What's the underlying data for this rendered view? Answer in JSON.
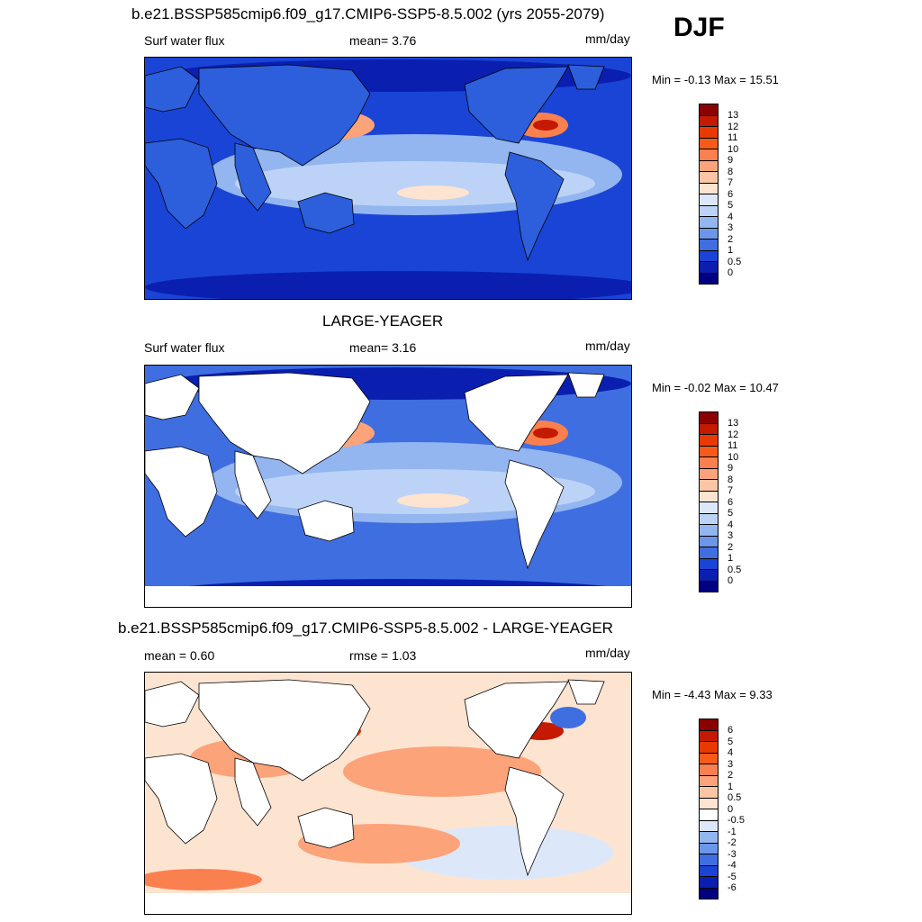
{
  "season": "DJF",
  "panels": [
    {
      "title": "b.e21.BSSP585cmip6.f09_g17.CMIP6-SSP5-8.5.002 (yrs 2055-2079)",
      "left_label": "Surf water flux",
      "stat": "mean=   3.76",
      "units": "mm/day",
      "minmax": "Min =  -0.13 Max =  15.51",
      "kind": "model",
      "colorbar": {
        "labels": [
          "13",
          "12",
          "11",
          "10",
          "9",
          "8",
          "7",
          "6",
          "5",
          "4",
          "3",
          "2",
          "1",
          "0.5",
          "0"
        ],
        "colors": [
          "#8b0000",
          "#c41a00",
          "#e83a00",
          "#f85a1a",
          "#fb8050",
          "#fca37a",
          "#fdc5a5",
          "#fde4d0",
          "#dce8fa",
          "#bcd3f7",
          "#93b6f0",
          "#6b96ea",
          "#3f6ee0",
          "#1a44d6",
          "#0a1fb0",
          "#000080"
        ]
      }
    },
    {
      "title": "LARGE-YEAGER",
      "left_label": "Surf water flux",
      "stat": "mean=   3.16",
      "units": "mm/day",
      "minmax": "Min =  -0.02 Max =  10.47",
      "kind": "obs",
      "colorbar": {
        "labels": [
          "13",
          "12",
          "11",
          "10",
          "9",
          "8",
          "7",
          "6",
          "5",
          "4",
          "3",
          "2",
          "1",
          "0.5",
          "0"
        ],
        "colors": [
          "#8b0000",
          "#c41a00",
          "#e83a00",
          "#f85a1a",
          "#fb8050",
          "#fca37a",
          "#fdc5a5",
          "#fde4d0",
          "#dce8fa",
          "#bcd3f7",
          "#93b6f0",
          "#6b96ea",
          "#3f6ee0",
          "#1a44d6",
          "#0a1fb0",
          "#000080"
        ]
      }
    },
    {
      "title": "b.e21.BSSP585cmip6.f09_g17.CMIP6-SSP5-8.5.002 - LARGE-YEAGER",
      "left_label": "mean =   0.60",
      "stat": "rmse =   1.03",
      "units": "mm/day",
      "minmax": "Min =  -4.43 Max =   9.33",
      "kind": "diff",
      "colorbar": {
        "labels": [
          "6",
          "5",
          "4",
          "3",
          "2",
          "1",
          "0.5",
          "0",
          "-0.5",
          "-1",
          "-2",
          "-3",
          "-4",
          "-5",
          "-6"
        ],
        "colors": [
          "#8b0000",
          "#c41a00",
          "#e83a00",
          "#f85a1a",
          "#fb8050",
          "#fca37a",
          "#fdc5a5",
          "#fde4d0",
          "#ffffff",
          "#dce8fa",
          "#93b6f0",
          "#6b96ea",
          "#3f6ee0",
          "#1a44d6",
          "#0a1fb0",
          "#000080"
        ]
      }
    }
  ]
}
